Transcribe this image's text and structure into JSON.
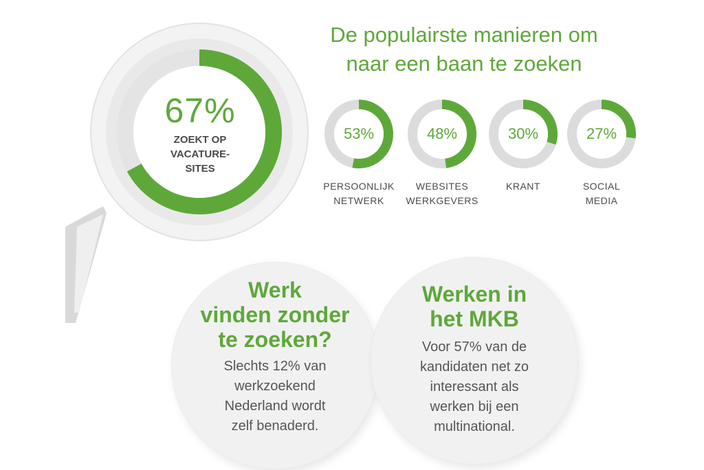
{
  "headline": {
    "line1": "De populairste manieren om",
    "line2": "naar een baan te zoeken"
  },
  "main_stat": {
    "value": "67%",
    "label_lines": [
      "ZOEKT OP",
      "VACATURE-",
      "SITES"
    ]
  },
  "methods": [
    {
      "value": "53%",
      "label_lines": [
        "PERSOONLIJK",
        "NETWERK"
      ]
    },
    {
      "value": "48%",
      "label_lines": [
        "WEBSITES",
        "WERKGEVERS"
      ]
    },
    {
      "value": "30%",
      "label_lines": [
        "KRANT",
        ""
      ]
    },
    {
      "value": "27%",
      "label_lines": [
        "SOCIAL",
        "MEDIA"
      ]
    }
  ],
  "bubble_left": {
    "title_lines": [
      "Werk",
      "vinden zonder",
      "te zoeken?"
    ],
    "body_lines": [
      "Slechts 12% van",
      "werkzoekend",
      "Nederland wordt",
      "zelf benaderd."
    ]
  },
  "bubble_right": {
    "title_lines": [
      "Werken in",
      "het MKB"
    ],
    "body_lines": [
      "Voor 57% van de",
      "kandidaten net zo",
      "interessant als",
      "werken bij een",
      "multinational."
    ]
  },
  "colors": {
    "accent_green": "#5ea83a",
    "ring_grey": "#e6e6e6",
    "text_grey": "#555555"
  },
  "chart_data": [
    {
      "type": "pie",
      "categories": [
        "ZOEKT OP VACATURE-SITES"
      ],
      "values": [
        67
      ]
    },
    {
      "type": "pie",
      "categories": [
        "PERSOONLIJK NETWERK",
        "WEBSITES WERKGEVERS",
        "KRANT",
        "SOCIAL MEDIA"
      ],
      "values": [
        53,
        48,
        30,
        27
      ],
      "title": "De populairste manieren om naar een baan te zoeken"
    }
  ]
}
